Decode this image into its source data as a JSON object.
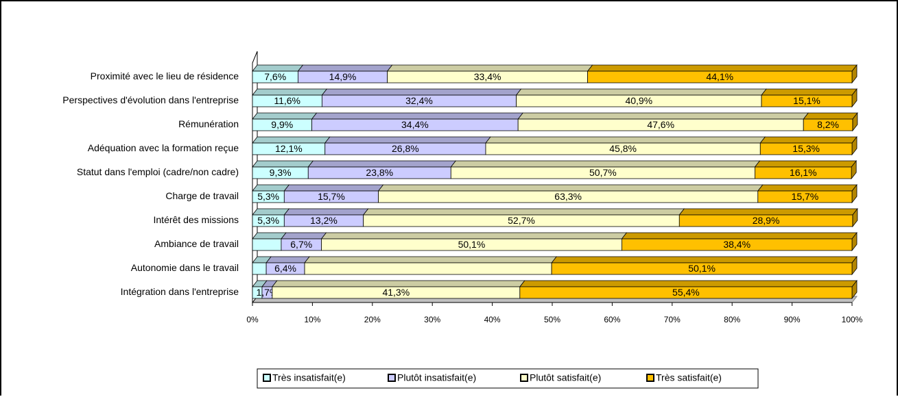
{
  "chart_data": {
    "type": "stacked-bar-horizontal",
    "categories": [
      "Proximité avec le lieu de résidence",
      "Perspectives d'évolution dans l'entreprise",
      "Rémunération",
      "Adéquation avec la formation reçue",
      "Statut dans l'emploi (cadre/non cadre)",
      "Charge de travail",
      "Intérêt des missions",
      "Ambiance de travail",
      "Autonomie dans le travail",
      "Intégration dans l'entreprise"
    ],
    "series": [
      {
        "name": "Très insatisfait(e)",
        "color": "#CCFFFF",
        "values": [
          7.6,
          11.6,
          9.9,
          12.1,
          9.3,
          5.3,
          5.3,
          4.8,
          2.3,
          1.6
        ],
        "value_labels": [
          "7,6%",
          "11,6%",
          "9,9%",
          "12,1%",
          "9,3%",
          "5,3%",
          "5,3%",
          null,
          null,
          null
        ]
      },
      {
        "name": "Plutôt insatisfait(e)",
        "color": "#CCCCFF",
        "values": [
          14.9,
          32.4,
          34.4,
          26.8,
          23.8,
          15.7,
          13.2,
          6.7,
          6.4,
          1.7
        ],
        "value_labels": [
          "14,9%",
          "32,4%",
          "34,4%",
          "26,8%",
          "23,8%",
          "15,7%",
          "13,2%",
          "6,7%",
          "6,4%",
          "1,7%"
        ]
      },
      {
        "name": "Plutôt satisfait(e)",
        "color": "#FFFFCC",
        "values": [
          33.4,
          40.9,
          47.6,
          45.8,
          50.7,
          63.3,
          52.7,
          50.1,
          41.2,
          41.3
        ],
        "value_labels": [
          "33,4%",
          "40,9%",
          "47,6%",
          "45,8%",
          "50,7%",
          "63,3%",
          "52,7%",
          "50,1%",
          null,
          "41,3%"
        ]
      },
      {
        "name": "Très satisfait(e)",
        "color": "#FFC000",
        "values": [
          44.1,
          15.1,
          8.2,
          15.3,
          16.1,
          15.7,
          28.9,
          38.4,
          50.1,
          55.4
        ],
        "value_labels": [
          "44,1%",
          "15,1%",
          "8,2%",
          "15,3%",
          "16,1%",
          "15,7%",
          "28,9%",
          "38,4%",
          "50,1%",
          "55,4%"
        ]
      }
    ],
    "xlim": [
      0,
      100
    ],
    "xticks": [
      {
        "value": 0,
        "label": "0%"
      },
      {
        "value": 10,
        "label": "10%"
      },
      {
        "value": 20,
        "label": "20%"
      },
      {
        "value": 30,
        "label": "30%"
      },
      {
        "value": 40,
        "label": "40%"
      },
      {
        "value": 50,
        "label": "50%"
      },
      {
        "value": 60,
        "label": "60%"
      },
      {
        "value": 70,
        "label": "70%"
      },
      {
        "value": 80,
        "label": "80%"
      },
      {
        "value": 90,
        "label": "90%"
      },
      {
        "value": 100,
        "label": "100%"
      }
    ],
    "legend": "bottom"
  }
}
